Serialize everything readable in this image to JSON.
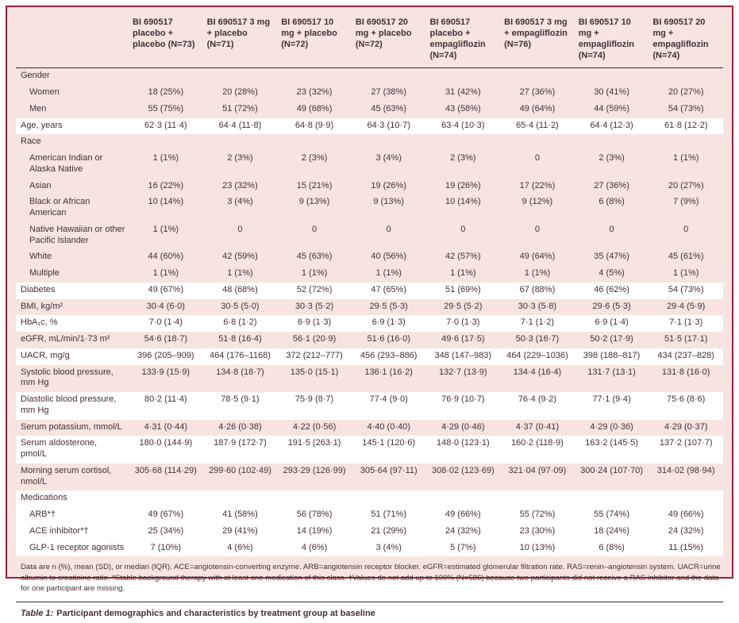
{
  "colors": {
    "frame": "#97203d",
    "panel_background": "#f7e3e0",
    "text": "#452f35",
    "rule": "#3d2c31",
    "white_row": "#ffffff"
  },
  "table": {
    "column_headers": [
      "",
      "BI 690517 placebo + placebo (N=73)",
      "BI 690517 3 mg + placebo (N=71)",
      "BI 690517 10 mg + placebo (N=72)",
      "BI 690517 20 mg + placebo (N=72)",
      "BI 690517 placebo + empagliflozin (N=74)",
      "BI 690517 3 mg + empagliflozin (N=76)",
      "BI 690517 10 mg + empagliflozin (N=74)",
      "BI 690517 20 mg + empagliflozin (N=74)"
    ],
    "rows": [
      {
        "label": "Gender",
        "section": true,
        "indent": false,
        "bg": "pink",
        "values": []
      },
      {
        "label": "Women",
        "section": false,
        "indent": true,
        "bg": "pink",
        "values": [
          "18 (25%)",
          "20 (28%)",
          "23 (32%)",
          "27 (38%)",
          "31 (42%)",
          "27 (36%)",
          "30 (41%)",
          "20 (27%)"
        ]
      },
      {
        "label": "Men",
        "section": false,
        "indent": true,
        "bg": "pink",
        "values": [
          "55 (75%)",
          "51 (72%)",
          "49 (68%)",
          "45 (63%)",
          "43 (58%)",
          "49 (64%)",
          "44 (59%)",
          "54 (73%)"
        ]
      },
      {
        "label": "Age, years",
        "section": false,
        "indent": false,
        "bg": "white",
        "values": [
          "62·3 (11·4)",
          "64·4 (11·8)",
          "64·8 (9·9)",
          "64·3 (10·7)",
          "63·4 (10·3)",
          "65·4 (11·2)",
          "64·4 (12·3)",
          "61·8 (12·2)"
        ]
      },
      {
        "label": "Race",
        "section": true,
        "indent": false,
        "bg": "pink",
        "values": []
      },
      {
        "label": "American Indian or Alaska Native",
        "section": false,
        "indent": true,
        "bg": "pink",
        "values": [
          "1 (1%)",
          "2 (3%)",
          "2 (3%)",
          "3 (4%)",
          "2 (3%)",
          "0",
          "2 (3%)",
          "1 (1%)"
        ]
      },
      {
        "label": "Asian",
        "section": false,
        "indent": true,
        "bg": "pink",
        "values": [
          "16 (22%)",
          "23 (32%)",
          "15 (21%)",
          "19 (26%)",
          "19 (26%)",
          "17 (22%)",
          "27 (36%)",
          "20 (27%)"
        ]
      },
      {
        "label": "Black or African American",
        "section": false,
        "indent": true,
        "bg": "pink",
        "values": [
          "10 (14%)",
          "3 (4%)",
          "9 (13%)",
          "9 (13%)",
          "10 (14%)",
          "9 (12%)",
          "6 (8%)",
          "7 (9%)"
        ]
      },
      {
        "label": "Native Hawaiian or other Pacific Islander",
        "section": false,
        "indent": true,
        "bg": "pink",
        "values": [
          "1 (1%)",
          "0",
          "0",
          "0",
          "0",
          "0",
          "0",
          "0"
        ]
      },
      {
        "label": "White",
        "section": false,
        "indent": true,
        "bg": "pink",
        "values": [
          "44 (60%)",
          "42 (59%)",
          "45 (63%)",
          "40 (56%)",
          "42 (57%)",
          "49 (64%)",
          "35 (47%)",
          "45 (61%)"
        ]
      },
      {
        "label": "Multiple",
        "section": false,
        "indent": true,
        "bg": "pink",
        "values": [
          "1 (1%)",
          "1 (1%)",
          "1 (1%)",
          "1 (1%)",
          "1 (1%)",
          "1 (1%)",
          "4 (5%)",
          "1 (1%)"
        ]
      },
      {
        "label": "Diabetes",
        "section": false,
        "indent": false,
        "bg": "white",
        "values": [
          "49 (67%)",
          "48 (68%)",
          "52 (72%)",
          "47 (65%)",
          "51 (69%)",
          "67 (88%)",
          "46 (62%)",
          "54 (73%)"
        ]
      },
      {
        "label": "BMI, kg/m²",
        "section": false,
        "indent": false,
        "bg": "pink",
        "values": [
          "30·4 (6·0)",
          "30·5 (5·0)",
          "30·3 (5·2)",
          "29·5 (5·3)",
          "29·5 (5·2)",
          "30·3 (5·8)",
          "29·6 (5·3)",
          "29·4 (5·9)"
        ]
      },
      {
        "label": "HbA₁c, %",
        "section": false,
        "indent": false,
        "bg": "white",
        "values": [
          "7·0 (1·4)",
          "6·8 (1·2)",
          "6·9 (1·3)",
          "6·9 (1·3)",
          "7·0 (1·3)",
          "7·1 (1·2)",
          "6·9 (1·4)",
          "7·1 (1·3)"
        ]
      },
      {
        "label": "eGFR, mL/min/1·73 m²",
        "section": false,
        "indent": false,
        "bg": "pink",
        "values": [
          "54·6 (18·7)",
          "51·8 (16·4)",
          "56·1 (20·9)",
          "51·6 (16·0)",
          "49·6 (17·5)",
          "50·3 (16·7)",
          "50·2 (17·9)",
          "51·5 (17·1)"
        ]
      },
      {
        "label": "UACR, mg/g",
        "section": false,
        "indent": false,
        "bg": "white",
        "values": [
          "396 (205–909)",
          "464 (176–1168)",
          "372 (212–777)",
          "456 (293–886)",
          "348 (147–983)",
          "464 (229–1036)",
          "398 (188–817)",
          "434 (237–828)"
        ]
      },
      {
        "label": "Systolic blood pressure, mm Hg",
        "section": false,
        "indent": false,
        "bg": "pink",
        "values": [
          "133·9 (15·9)",
          "134·8 (18·7)",
          "135·0 (15·1)",
          "136·1 (16·2)",
          "132·7 (13·9)",
          "134·4 (16·4)",
          "131·7 (13·1)",
          "131·8 (16·0)"
        ]
      },
      {
        "label": "Diastolic blood pressure, mm Hg",
        "section": false,
        "indent": false,
        "bg": "white",
        "values": [
          "80·2 (11·4)",
          "78·5 (9·1)",
          "75·9 (8·7)",
          "77·4 (9·0)",
          "76·9 (10·7)",
          "76·4 (9·2)",
          "77·1 (9·4)",
          "75·6 (8·6)"
        ]
      },
      {
        "label": "Serum potassium, mmol/L",
        "section": false,
        "indent": false,
        "bg": "pink",
        "values": [
          "4·31 (0·44)",
          "4·26 (0·38)",
          "4·22 (0·56)",
          "4·40 (0·40)",
          "4·29 (0·46)",
          "4·37 (0·41)",
          "4·29 (0·36)",
          "4·29 (0·37)"
        ]
      },
      {
        "label": "Serum aldosterone, pmol/L",
        "section": false,
        "indent": false,
        "bg": "white",
        "values": [
          "180·0 (144·9)",
          "187·9 (172·7)",
          "191·5 (263·1)",
          "145·1 (120·6)",
          "148·0 (123·1)",
          "160·2 (118·9)",
          "163·2 (145·5)",
          "137·2 (107·7)"
        ]
      },
      {
        "label": "Morning serum cortisol, nmol/L",
        "section": false,
        "indent": false,
        "bg": "pink",
        "values": [
          "305·68 (114·29)",
          "299·60 (102·49)",
          "293·29 (126·99)",
          "305·64 (97·11)",
          "308·02 (123·69)",
          "321·04 (97·09)",
          "300·24 (107·70)",
          "314·02 (98·94)"
        ]
      },
      {
        "label": "Medications",
        "section": true,
        "indent": false,
        "bg": "white",
        "values": []
      },
      {
        "label": "ARB*†",
        "section": false,
        "indent": true,
        "bg": "white",
        "values": [
          "49 (67%)",
          "41 (58%)",
          "56 (78%)",
          "51 (71%)",
          "49 (66%)",
          "55 (72%)",
          "55 (74%)",
          "49 (66%)"
        ]
      },
      {
        "label": "ACE inhibitor*†",
        "section": false,
        "indent": true,
        "bg": "white",
        "values": [
          "25 (34%)",
          "29 (41%)",
          "14 (19%)",
          "21 (29%)",
          "24 (32%)",
          "23 (30%)",
          "18 (24%)",
          "24 (32%)"
        ]
      },
      {
        "label": "GLP-1 receptor agonists",
        "section": false,
        "indent": true,
        "bg": "white",
        "values": [
          "7 (10%)",
          "4 (6%)",
          "4 (6%)",
          "3 (4%)",
          "5 (7%)",
          "10 (13%)",
          "6 (8%)",
          "11 (15%)"
        ]
      }
    ],
    "footnote": "Data are n (%), mean (SD), or median (IQR). ACE=angiotensin-converting enzyme. ARB=angiotensin receptor blocker. eGFR=estimated glomerular filtration rate. RAS=renin–angiotensin system. UACR=urine albumin to creatinine ratio. *Stable background therapy with at least one medication of this class. †Values do not add up to 100% (N=586) because two participants did not receive a RAS inhibitor and the data for one participant are missing.",
    "caption_label": "Table 1:",
    "caption_text": "Participant demographics and characteristics by treatment group at baseline"
  }
}
